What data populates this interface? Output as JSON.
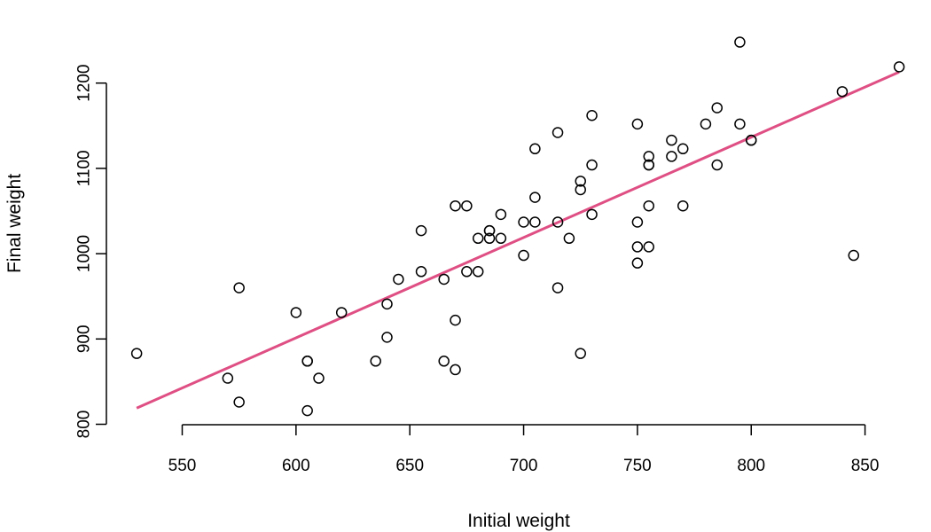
{
  "chart_data": {
    "type": "scatter",
    "title": "",
    "xlabel": "Initial weight",
    "ylabel": "Final weight",
    "xlim": [
      520,
      870
    ],
    "ylim": [
      800,
      1250
    ],
    "xticks": [
      550,
      600,
      650,
      700,
      750,
      800,
      850
    ],
    "yticks": [
      800,
      900,
      1000,
      1100,
      1200
    ],
    "grid": false,
    "legend": "none",
    "point_color": "#000000",
    "points": [
      [
        530,
        883
      ],
      [
        570,
        854
      ],
      [
        575,
        960
      ],
      [
        575,
        826
      ],
      [
        600,
        931
      ],
      [
        605,
        874
      ],
      [
        605,
        874
      ],
      [
        605,
        816
      ],
      [
        610,
        854
      ],
      [
        620,
        931
      ],
      [
        635,
        874
      ],
      [
        640,
        941
      ],
      [
        640,
        902
      ],
      [
        645,
        970
      ],
      [
        655,
        1027
      ],
      [
        655,
        979
      ],
      [
        665,
        970
      ],
      [
        665,
        874
      ],
      [
        670,
        1056
      ],
      [
        670,
        922
      ],
      [
        670,
        864
      ],
      [
        675,
        1056
      ],
      [
        675,
        979
      ],
      [
        680,
        1018
      ],
      [
        680,
        979
      ],
      [
        685,
        1027
      ],
      [
        685,
        1027
      ],
      [
        685,
        1018
      ],
      [
        690,
        1046
      ],
      [
        690,
        1018
      ],
      [
        700,
        1037
      ],
      [
        700,
        998
      ],
      [
        705,
        1123
      ],
      [
        705,
        1066
      ],
      [
        705,
        1037
      ],
      [
        715,
        1142
      ],
      [
        715,
        1037
      ],
      [
        715,
        960
      ],
      [
        720,
        1018
      ],
      [
        725,
        1085
      ],
      [
        725,
        1075
      ],
      [
        725,
        883
      ],
      [
        730,
        1162
      ],
      [
        730,
        1104
      ],
      [
        730,
        1046
      ],
      [
        750,
        1152
      ],
      [
        750,
        1037
      ],
      [
        750,
        1008
      ],
      [
        750,
        989
      ],
      [
        755,
        1114
      ],
      [
        755,
        1104
      ],
      [
        755,
        1104
      ],
      [
        755,
        1056
      ],
      [
        755,
        1008
      ],
      [
        765,
        1133
      ],
      [
        765,
        1114
      ],
      [
        770,
        1123
      ],
      [
        770,
        1056
      ],
      [
        780,
        1152
      ],
      [
        785,
        1171
      ],
      [
        785,
        1104
      ],
      [
        795,
        1248
      ],
      [
        795,
        1152
      ],
      [
        800,
        1133
      ],
      [
        800,
        1133
      ],
      [
        840,
        1190
      ],
      [
        845,
        998
      ],
      [
        865,
        1219
      ]
    ],
    "fit_line": {
      "color": "#DF4F83",
      "x": [
        530,
        865
      ],
      "y": [
        819,
        1213
      ]
    }
  }
}
